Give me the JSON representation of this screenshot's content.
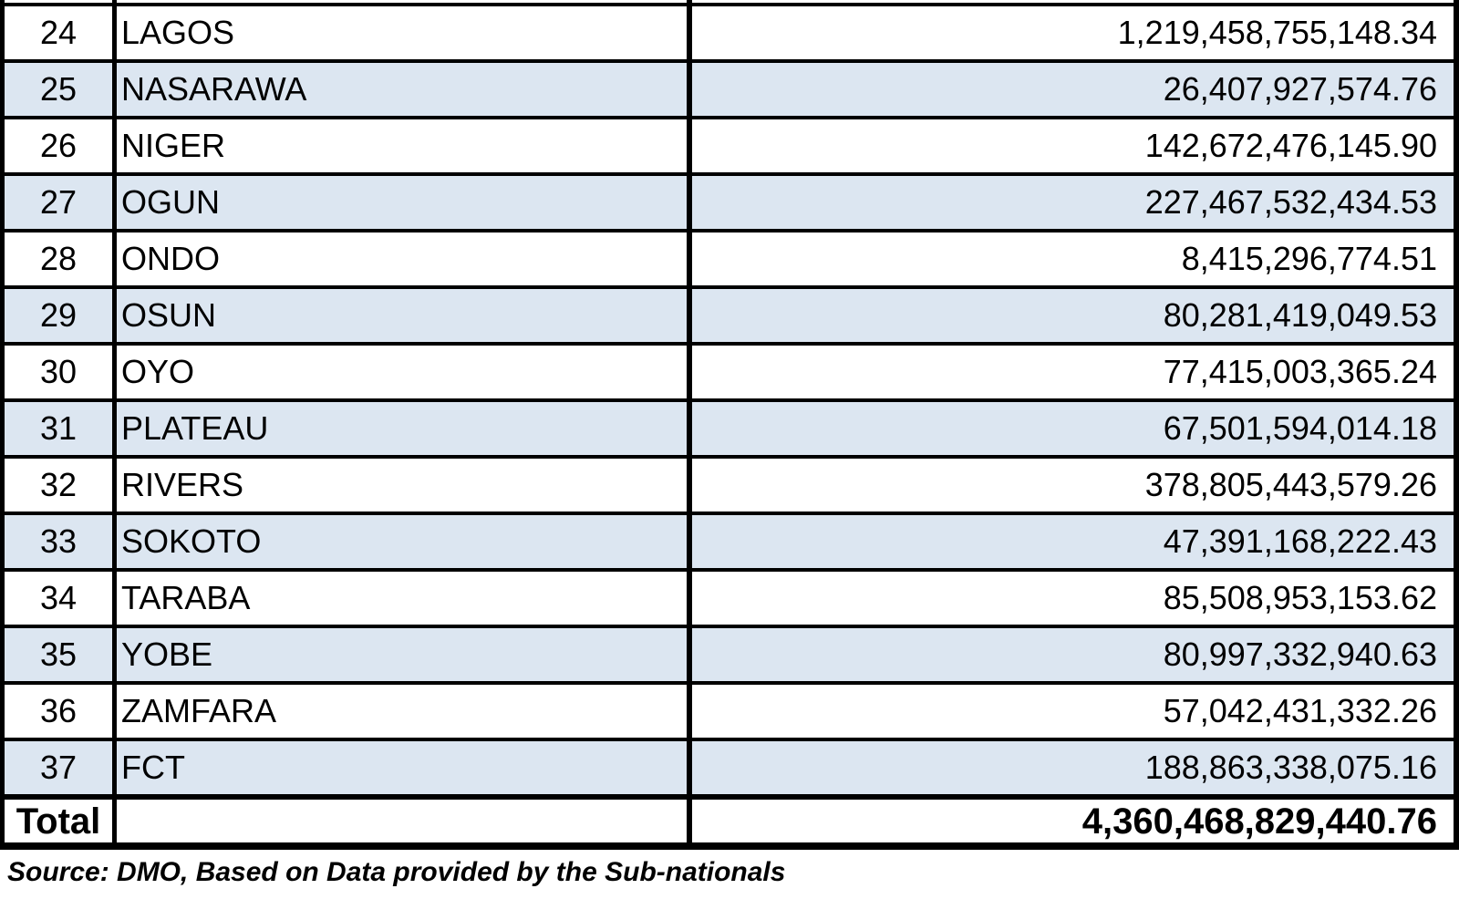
{
  "table": {
    "rows": [
      {
        "sn": "24",
        "state": "LAGOS",
        "value": "1,219,458,755,148.34"
      },
      {
        "sn": "25",
        "state": "NASARAWA",
        "value": "26,407,927,574.76"
      },
      {
        "sn": "26",
        "state": "NIGER",
        "value": "142,672,476,145.90"
      },
      {
        "sn": "27",
        "state": "OGUN",
        "value": "227,467,532,434.53"
      },
      {
        "sn": "28",
        "state": "ONDO",
        "value": "8,415,296,774.51"
      },
      {
        "sn": "29",
        "state": "OSUN",
        "value": "80,281,419,049.53"
      },
      {
        "sn": "30",
        "state": "OYO",
        "value": "77,415,003,365.24"
      },
      {
        "sn": "31",
        "state": "PLATEAU",
        "value": "67,501,594,014.18"
      },
      {
        "sn": "32",
        "state": "RIVERS",
        "value": "378,805,443,579.26"
      },
      {
        "sn": "33",
        "state": "SOKOTO",
        "value": "47,391,168,222.43"
      },
      {
        "sn": "34",
        "state": "TARABA",
        "value": "85,508,953,153.62"
      },
      {
        "sn": "35",
        "state": "YOBE",
        "value": "80,997,332,940.63"
      },
      {
        "sn": "36",
        "state": "ZAMFARA",
        "value": "57,042,431,332.26"
      },
      {
        "sn": "37",
        "state": "FCT",
        "value": "188,863,338,075.16"
      }
    ],
    "total": {
      "label": "Total",
      "value": "4,360,468,829,440.76"
    }
  },
  "footer": {
    "source_note": "Source: DMO, Based on Data provided by the Sub-nationals"
  },
  "colors": {
    "band_blue": "#dce6f1",
    "border": "#000000",
    "text": "#000000",
    "background": "#ffffff"
  }
}
